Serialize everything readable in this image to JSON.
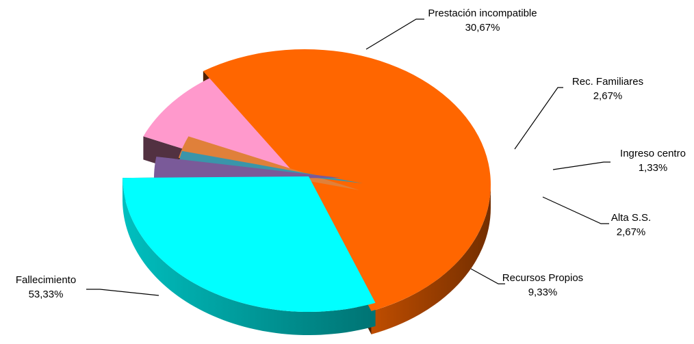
{
  "chart_data": {
    "type": "pie",
    "title": "",
    "slices": [
      {
        "name": "Fallecimiento",
        "value": 53.33,
        "label": "53,33%",
        "color": "#FF6600"
      },
      {
        "name": "Prestación incompatible",
        "value": 30.67,
        "label": "30,67%",
        "color": "#00FFFF"
      },
      {
        "name": "Rec. Familiares",
        "value": 2.67,
        "label": "2,67%",
        "color": "#7A5A99"
      },
      {
        "name": "Ingreso centro",
        "value": 1.33,
        "label": "1,33%",
        "color": "#3A95AA"
      },
      {
        "name": "Alta S.S.",
        "value": 2.67,
        "label": "2,67%",
        "color": "#E0803A"
      },
      {
        "name": "Recursos Propios",
        "value": 9.33,
        "label": "9,33%",
        "color": "#FF99CC"
      }
    ],
    "exploded": [
      "Prestación incompatible",
      "Rec. Familiares",
      "Ingreso centro",
      "Alta S.S.",
      "Recursos Propios"
    ],
    "legend": "none",
    "style": "3d-exploded"
  }
}
